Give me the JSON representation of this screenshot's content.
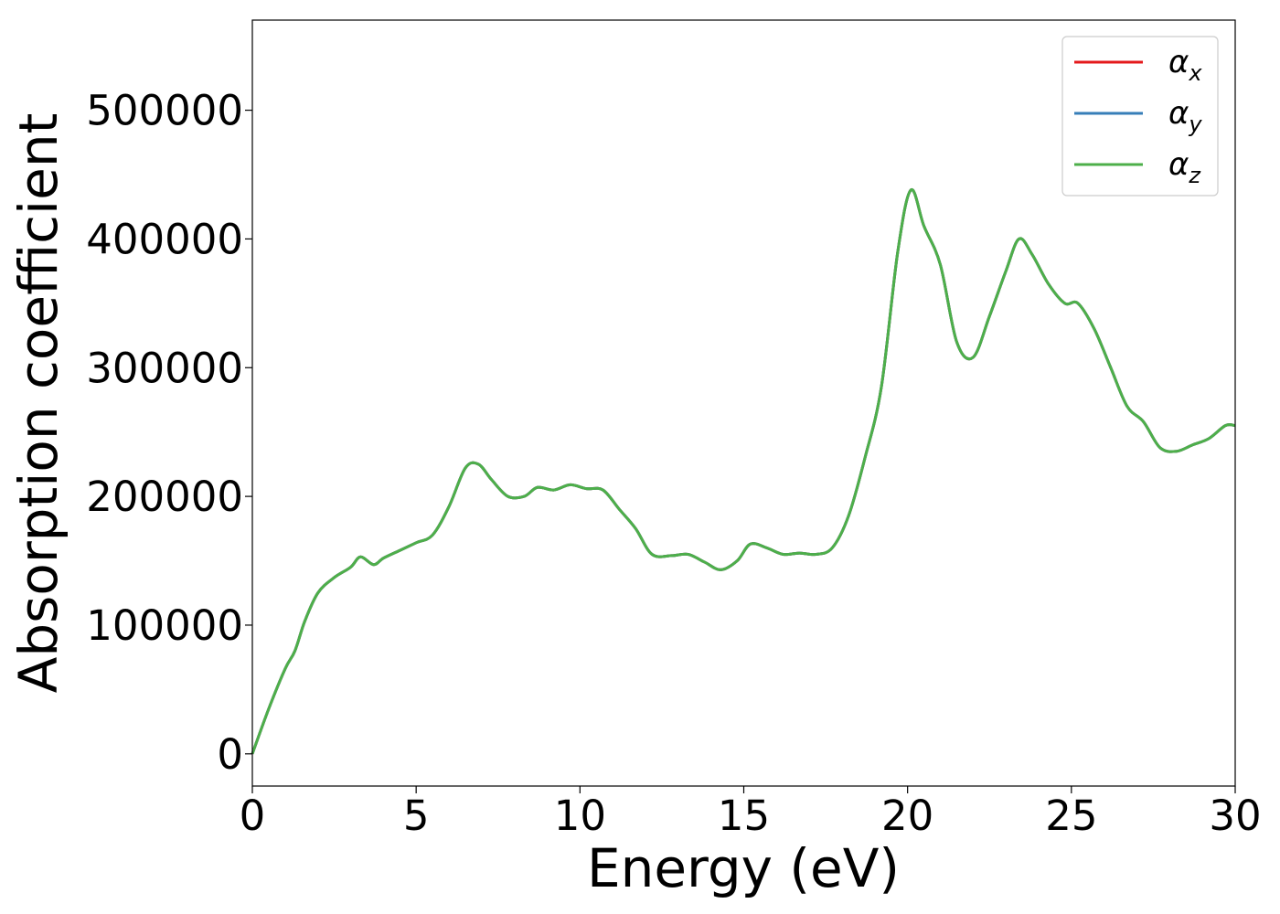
{
  "chart_data": {
    "type": "line",
    "xlabel": "Energy (eV)",
    "ylabel": "Absorption coefficient",
    "xlim": [
      0,
      30
    ],
    "ylim": [
      -25000,
      570000
    ],
    "xticks": [
      0,
      5,
      10,
      15,
      20,
      25,
      30
    ],
    "yticks": [
      0,
      100000,
      200000,
      300000,
      400000,
      500000
    ],
    "xtick_labels": [
      "0",
      "5",
      "10",
      "15",
      "20",
      "25",
      "30"
    ],
    "ytick_labels": [
      "0",
      "100000",
      "200000",
      "300000",
      "400000",
      "500000"
    ],
    "grid": false,
    "legend_position": "top-right",
    "legend_items": [
      {
        "symbol": "α",
        "subscript": "x",
        "color": "#e41a1c"
      },
      {
        "symbol": "α",
        "subscript": "y",
        "color": "#377eb8"
      },
      {
        "symbol": "α",
        "subscript": "z",
        "color": "#4daf4a"
      }
    ],
    "x": [
      0,
      0.5,
      1.0,
      1.3,
      1.6,
      2.0,
      2.5,
      3.0,
      3.3,
      3.7,
      4.0,
      4.5,
      5.0,
      5.5,
      6.0,
      6.5,
      6.9,
      7.3,
      7.8,
      8.3,
      8.7,
      9.2,
      9.7,
      10.2,
      10.7,
      11.2,
      11.7,
      12.2,
      12.8,
      13.3,
      13.8,
      14.3,
      14.8,
      15.2,
      15.7,
      16.2,
      16.7,
      17.2,
      17.7,
      18.2,
      18.7,
      19.2,
      19.7,
      20.1,
      20.5,
      21.0,
      21.5,
      22.0,
      22.5,
      23.0,
      23.4,
      23.8,
      24.3,
      24.8,
      25.2,
      25.7,
      26.2,
      26.7,
      27.2,
      27.7,
      28.2,
      28.7,
      29.2,
      29.7,
      30.0
    ],
    "series": [
      {
        "values": [
          0,
          35000,
          66000,
          80000,
          103000,
          125000,
          137000,
          145000,
          153000,
          147000,
          152000,
          158000,
          164000,
          170000,
          192000,
          222000,
          225000,
          213000,
          200000,
          200000,
          207000,
          205000,
          209000,
          206000,
          205000,
          190000,
          175000,
          155000,
          154000,
          155000,
          149000,
          143000,
          150000,
          163000,
          160000,
          155000,
          156000,
          155000,
          160000,
          185000,
          230000,
          285000,
          390000,
          438000,
          410000,
          380000,
          320000,
          308000,
          340000,
          375000,
          400000,
          388000,
          365000,
          350000,
          350000,
          330000,
          300000,
          270000,
          258000,
          238000,
          235000,
          240000,
          245000,
          255000,
          255000
        ]
      },
      {
        "values": [
          0,
          35000,
          66000,
          80000,
          103000,
          125000,
          137000,
          145000,
          153000,
          147000,
          152000,
          158000,
          164000,
          170000,
          192000,
          222000,
          225000,
          213000,
          200000,
          200000,
          207000,
          205000,
          209000,
          206000,
          205000,
          190000,
          175000,
          155000,
          154000,
          155000,
          149000,
          143000,
          150000,
          163000,
          160000,
          155000,
          156000,
          155000,
          160000,
          185000,
          230000,
          285000,
          390000,
          438000,
          410000,
          380000,
          320000,
          308000,
          340000,
          375000,
          400000,
          388000,
          365000,
          350000,
          350000,
          330000,
          300000,
          270000,
          258000,
          238000,
          235000,
          240000,
          245000,
          255000,
          255000
        ]
      },
      {
        "values": [
          0,
          35000,
          66000,
          80000,
          103000,
          125000,
          137000,
          145000,
          153000,
          147000,
          152000,
          158000,
          164000,
          170000,
          192000,
          222000,
          225000,
          213000,
          200000,
          200000,
          207000,
          205000,
          209000,
          206000,
          205000,
          190000,
          175000,
          155000,
          154000,
          155000,
          149000,
          143000,
          150000,
          163000,
          160000,
          155000,
          156000,
          155000,
          160000,
          185000,
          230000,
          285000,
          390000,
          438000,
          410000,
          380000,
          320000,
          308000,
          340000,
          375000,
          400000,
          388000,
          365000,
          350000,
          350000,
          330000,
          300000,
          270000,
          258000,
          238000,
          235000,
          240000,
          245000,
          255000,
          255000
        ]
      }
    ]
  }
}
